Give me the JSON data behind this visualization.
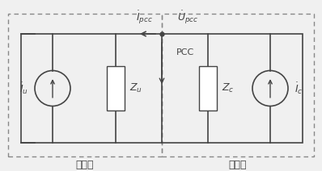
{
  "bg_color": "#f0f0f0",
  "line_color": "#444444",
  "dashed_color": "#888888",
  "white": "#ffffff",
  "label_xitong": "系统侧",
  "label_yonghu": "用户侧",
  "label_Ipcc": "$\\dot{I}_{pcc}$",
  "label_Upcc": "$\\dot{U}_{pcc}$",
  "label_PCC": "PCC",
  "label_Zu": "$Z_u$",
  "label_Zc": "$Z_c$",
  "label_Iu": "$\\dot{I}_u$",
  "label_Ic": "$\\dot{I}_c$",
  "figw": 3.98,
  "figh": 2.12,
  "dpi": 100
}
